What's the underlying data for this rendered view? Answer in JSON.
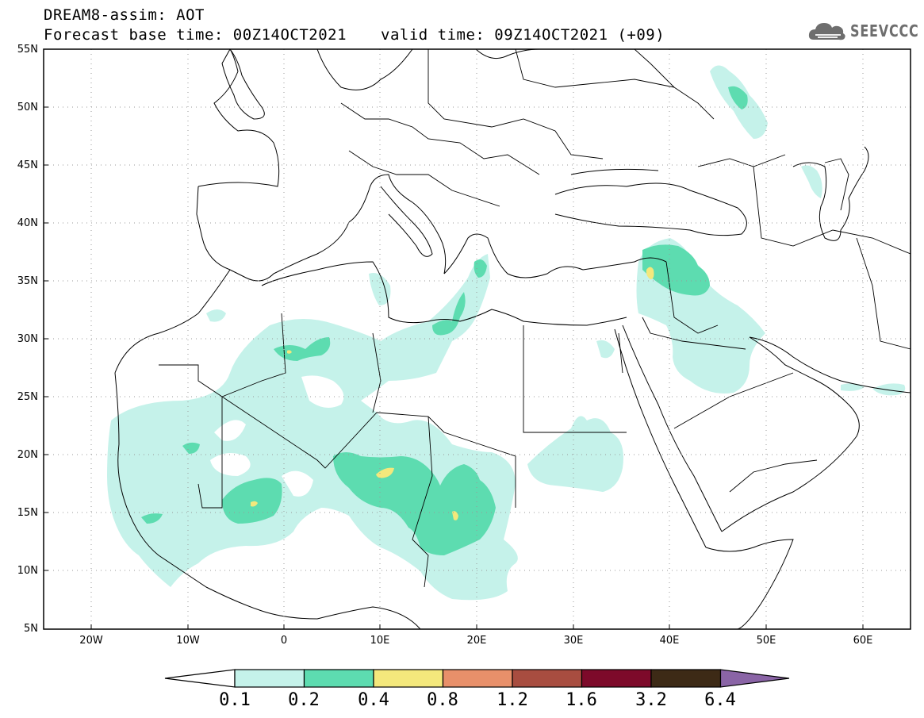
{
  "header": {
    "title": "DREAM8-assim: AOT",
    "base_time": "Forecast base time: 00Z14OCT2021",
    "valid_time": "valid time: 09Z14OCT2021 (+09)"
  },
  "logo": {
    "text": "SEEVCCC",
    "icon": "cloud-icon"
  },
  "map": {
    "lon_range": [
      -25,
      65
    ],
    "lat_range": [
      5,
      55
    ],
    "lat_ticks": [
      "55N",
      "50N",
      "45N",
      "40N",
      "35N",
      "30N",
      "25N",
      "20N",
      "15N",
      "10N",
      "5N"
    ],
    "lon_ticks": [
      "20W",
      "10W",
      "0",
      "10E",
      "20E",
      "30E",
      "40E",
      "50E",
      "60E"
    ],
    "gridlines": "dotted"
  },
  "legend": {
    "labels": [
      "0.1",
      "0.2",
      "0.4",
      "0.8",
      "1.2",
      "1.6",
      "3.2",
      "6.4"
    ],
    "colors": [
      "#c5f2ea",
      "#5ddcb0",
      "#f4e87c",
      "#e8906a",
      "#a84d40",
      "#7d0a2a",
      "#3d2a16"
    ],
    "under_color": "#ffffff",
    "over_color": "#8a64a6"
  },
  "colors": {
    "aot_low": "#c5f2ea",
    "aot_mid": "#5ddcb0",
    "aot_high": "#f4e87c"
  }
}
